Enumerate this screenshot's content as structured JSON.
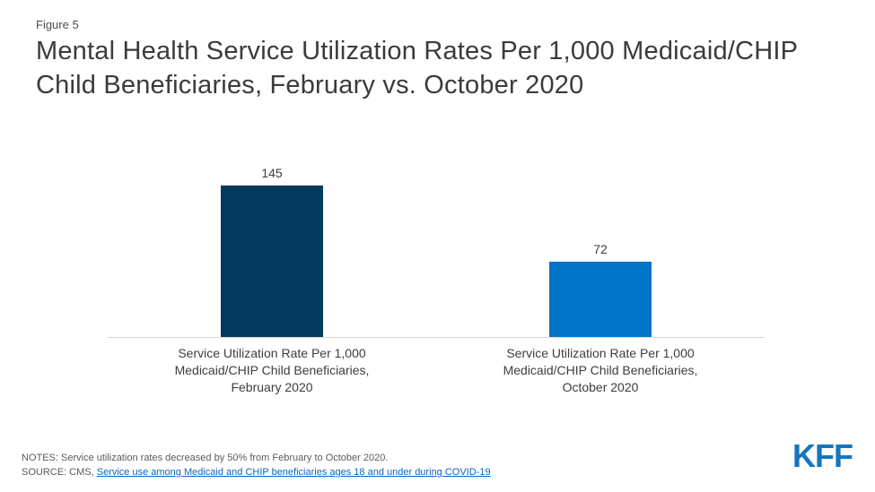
{
  "figure_label": "Figure 5",
  "title": "Mental Health Service Utilization Rates Per 1,000 Medicaid/CHIP Child Beneficiaries, February vs. October 2020",
  "chart_data": {
    "type": "bar",
    "title": "Mental Health Service Utilization Rates Per 1,000 Medicaid/CHIP Child Beneficiaries, February vs. October 2020",
    "categories": [
      "Service Utilization Rate Per 1,000\nMedicaid/CHIP Child Beneficiaries,\nFebruary 2020",
      "Service Utilization Rate Per 1,000\nMedicaid/CHIP Child Beneficiaries,\nOctober 2020"
    ],
    "values": [
      145,
      72
    ],
    "value_labels": [
      "145",
      "72"
    ],
    "bar_colors": [
      "#03395e",
      "#0074c8"
    ],
    "xlabel": "",
    "ylabel": "",
    "ylim": [
      0,
      160
    ],
    "grid": false,
    "legend": false,
    "axis_line_color": "#d8d8d8"
  },
  "footer": {
    "notes": "NOTES: Service utilization rates decreased by 50% from February to October 2020.",
    "source_prefix": "SOURCE: CMS, ",
    "source_link_text": "Service use among Medicaid and CHIP beneficiaries ages 18 and under during COVID-19",
    "link_color": "#0b63c5"
  },
  "branding": {
    "logo_text": "KFF",
    "logo_color": "#1476bd"
  }
}
